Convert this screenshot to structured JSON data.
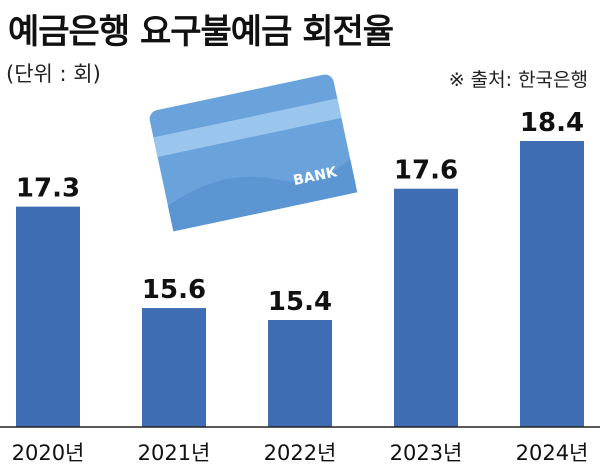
{
  "header": {
    "title": "예금은행 요구불예금 회전율",
    "unit": "(단위 : 회)",
    "source": "※ 출처: 한국은행"
  },
  "illustration": {
    "card_label": "BANK",
    "card_icon": "credit-card-icon"
  },
  "colors": {
    "bar": "#3f6db3",
    "axis": "#222222"
  },
  "chart_data": {
    "type": "bar",
    "title": "예금은행 요구불예금 회전율",
    "categories": [
      "2020년",
      "2021년",
      "2022년",
      "2023년",
      "2024년"
    ],
    "values": [
      17.3,
      15.6,
      15.4,
      17.6,
      18.4
    ],
    "value_labels": [
      "17.3",
      "15.6",
      "15.4",
      "17.6",
      "18.4"
    ],
    "xlabel": "",
    "ylabel": "",
    "grid": false,
    "legend": "none"
  }
}
